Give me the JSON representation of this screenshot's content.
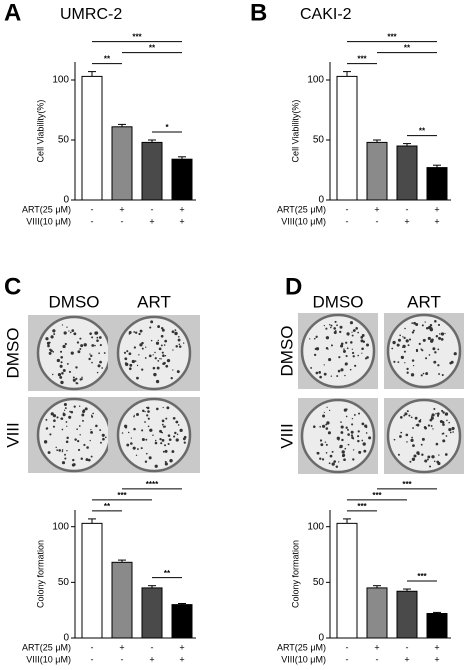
{
  "panels": [
    {
      "letter": "A"
    },
    {
      "letter": "B"
    },
    {
      "letter": "C",
      "columns": [
        "DMSO",
        "ART"
      ],
      "rows": [
        "DMSO",
        "VIII"
      ]
    },
    {
      "letter": "D",
      "columns": [
        "DMSO",
        "ART"
      ],
      "rows": [
        "DMSO",
        "VIII"
      ]
    }
  ],
  "chart_data": [
    {
      "type": "bar",
      "title": "UMRC-2",
      "y_label": "Cell Viability(%)",
      "values": [
        103,
        61,
        48,
        34
      ],
      "errors": [
        4,
        2,
        2,
        2
      ],
      "colors": [
        "#ffffff",
        "#8a8a8a",
        "#4a4a4a",
        "#000000"
      ],
      "ylim": [
        0,
        115
      ],
      "yticks": [
        0,
        50,
        100
      ],
      "treatments": [
        {
          "name": "ART(25 μM)",
          "levels": [
            "-",
            "+",
            "-",
            "+"
          ]
        },
        {
          "name": "VIII(10 μM)",
          "levels": [
            "-",
            "-",
            "+",
            "+"
          ]
        }
      ],
      "significance": [
        {
          "from": 0,
          "to": 1,
          "label": "**"
        },
        {
          "from": 0,
          "to": 3,
          "label": "***"
        },
        {
          "from": 1,
          "to": 3,
          "label": "**"
        },
        {
          "from": 2,
          "to": 3,
          "label": "*"
        }
      ]
    },
    {
      "type": "bar",
      "title": "CAKI-2",
      "y_label": "Cell Viability(%)",
      "values": [
        103,
        48,
        45,
        27
      ],
      "errors": [
        4,
        2,
        2,
        2
      ],
      "colors": [
        "#ffffff",
        "#8a8a8a",
        "#4a4a4a",
        "#000000"
      ],
      "ylim": [
        0,
        115
      ],
      "yticks": [
        0,
        50,
        100
      ],
      "treatments": [
        {
          "name": "ART(25 μM)",
          "levels": [
            "-",
            "+",
            "-",
            "+"
          ]
        },
        {
          "name": "VIII(10 μM)",
          "levels": [
            "-",
            "-",
            "+",
            "+"
          ]
        }
      ],
      "significance": [
        {
          "from": 0,
          "to": 1,
          "label": "***"
        },
        {
          "from": 0,
          "to": 3,
          "label": "***"
        },
        {
          "from": 1,
          "to": 3,
          "label": "**"
        },
        {
          "from": 2,
          "to": 3,
          "label": "**"
        }
      ]
    },
    {
      "type": "bar",
      "y_label": "Colony formation",
      "values": [
        103,
        68,
        45,
        30
      ],
      "errors": [
        4,
        2,
        2,
        1
      ],
      "colors": [
        "#ffffff",
        "#8a8a8a",
        "#4a4a4a",
        "#000000"
      ],
      "ylim": [
        0,
        115
      ],
      "yticks": [
        0,
        50,
        100
      ],
      "treatments": [
        {
          "name": "ART(25 μM)",
          "levels": [
            "-",
            "+",
            "-",
            "+"
          ]
        },
        {
          "name": "VIII(10 μM)",
          "levels": [
            "-",
            "-",
            "+",
            "+"
          ]
        }
      ],
      "significance": [
        {
          "from": 0,
          "to": 1,
          "label": "**"
        },
        {
          "from": 0,
          "to": 2,
          "label": "***"
        },
        {
          "from": 1,
          "to": 3,
          "label": "****"
        },
        {
          "from": 2,
          "to": 3,
          "label": "**"
        }
      ]
    },
    {
      "type": "bar",
      "y_label": "Colony formation",
      "values": [
        103,
        45,
        42,
        22
      ],
      "errors": [
        4,
        2,
        2,
        1
      ],
      "colors": [
        "#ffffff",
        "#8a8a8a",
        "#4a4a4a",
        "#000000"
      ],
      "ylim": [
        0,
        115
      ],
      "yticks": [
        0,
        50,
        100
      ],
      "treatments": [
        {
          "name": "ART(25 μM)",
          "levels": [
            "-",
            "+",
            "-",
            "+"
          ]
        },
        {
          "name": "VIII(10 μM)",
          "levels": [
            "-",
            "-",
            "+",
            "+"
          ]
        }
      ],
      "significance": [
        {
          "from": 0,
          "to": 1,
          "label": "***"
        },
        {
          "from": 0,
          "to": 2,
          "label": "***"
        },
        {
          "from": 1,
          "to": 3,
          "label": "***"
        },
        {
          "from": 2,
          "to": 3,
          "label": "***"
        }
      ]
    }
  ]
}
